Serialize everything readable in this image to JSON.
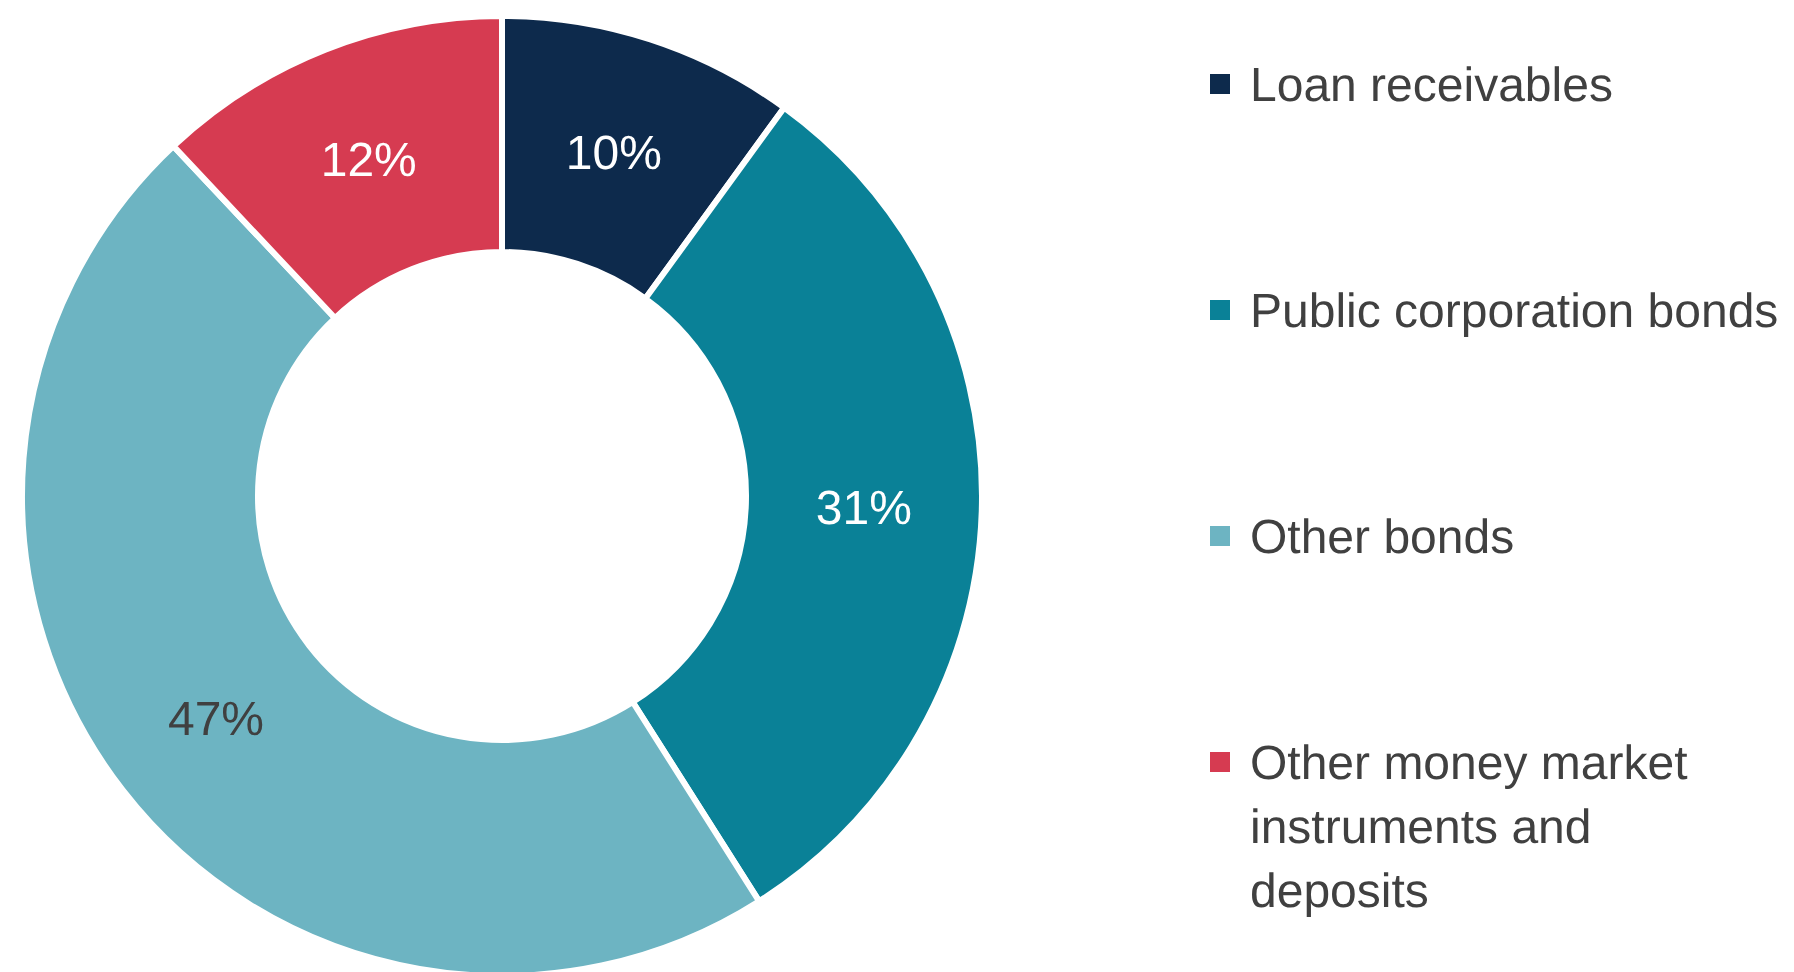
{
  "chart_data": {
    "type": "donut",
    "categories": [
      "Loan receivables",
      "Public corporation bonds",
      "Other bonds",
      "Other money market instruments and deposits"
    ],
    "values": [
      10,
      31,
      47,
      12
    ],
    "value_labels": [
      "10%",
      "31%",
      "47%",
      "12%"
    ],
    "colors": [
      "#0d2a4c",
      "#0a8197",
      "#6db4c2",
      "#d63b51"
    ],
    "legend": "right"
  }
}
